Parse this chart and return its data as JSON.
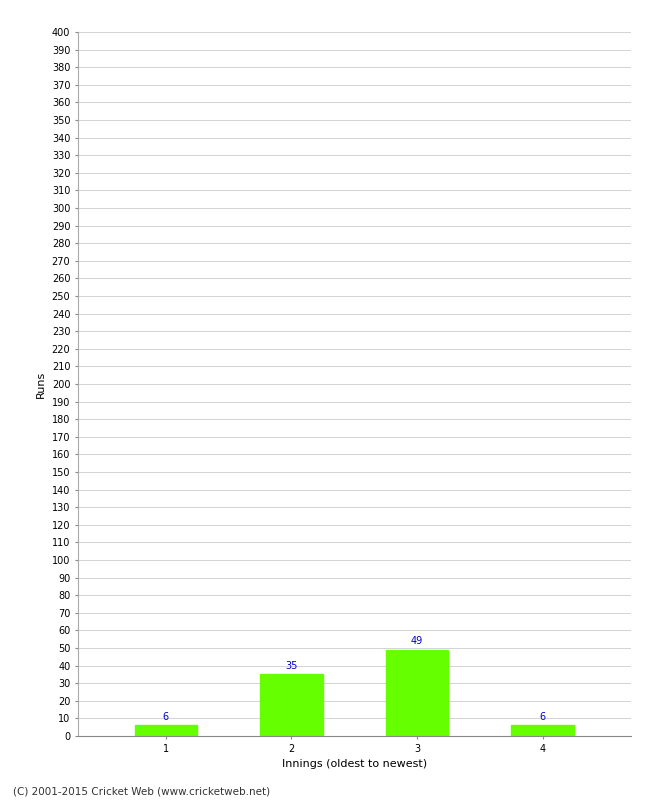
{
  "xlabel": "Innings (oldest to newest)",
  "ylabel": "Runs",
  "categories": [
    1,
    2,
    3,
    4
  ],
  "values": [
    6,
    35,
    49,
    6
  ],
  "bar_color": "#66ff00",
  "bar_edge_color": "#66ff00",
  "ylim": [
    0,
    400
  ],
  "ytick_step": 10,
  "annotation_color": "#0000cc",
  "annotation_fontsize": 7,
  "xlabel_fontsize": 8,
  "ylabel_fontsize": 8,
  "tick_fontsize": 7,
  "footer_text": "(C) 2001-2015 Cricket Web (www.cricketweb.net)",
  "footer_fontsize": 7.5,
  "background_color": "#ffffff",
  "grid_color": "#cccccc"
}
